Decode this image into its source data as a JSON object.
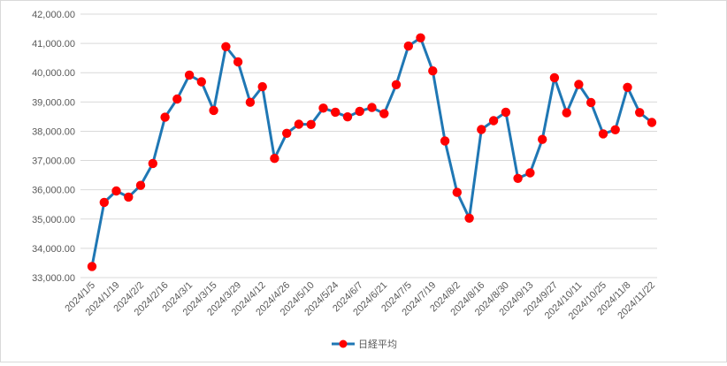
{
  "chart_data": {
    "type": "line",
    "title": "",
    "xlabel": "",
    "ylabel": "",
    "ylim": [
      33000,
      42000
    ],
    "y_ticks": [
      33000,
      34000,
      35000,
      36000,
      37000,
      38000,
      39000,
      40000,
      41000,
      42000
    ],
    "y_tick_labels": [
      "33,000.00",
      "34,000.00",
      "35,000.00",
      "36,000.00",
      "37,000.00",
      "38,000.00",
      "39,000.00",
      "40,000.00",
      "41,000.00",
      "42,000.00"
    ],
    "grid": true,
    "legend_position": "bottom",
    "x": [
      "2024/1/5",
      "2024/1/12",
      "2024/1/19",
      "2024/1/26",
      "2024/2/2",
      "2024/2/9",
      "2024/2/16",
      "2024/2/23",
      "2024/3/1",
      "2024/3/8",
      "2024/3/15",
      "2024/3/22",
      "2024/3/29",
      "2024/4/5",
      "2024/4/12",
      "2024/4/19",
      "2024/4/26",
      "2024/5/3",
      "2024/5/10",
      "2024/5/17",
      "2024/5/24",
      "2024/5/31",
      "2024/6/7",
      "2024/6/14",
      "2024/6/21",
      "2024/6/28",
      "2024/7/5",
      "2024/7/12",
      "2024/7/19",
      "2024/7/26",
      "2024/8/2",
      "2024/8/9",
      "2024/8/16",
      "2024/8/23",
      "2024/8/30",
      "2024/9/6",
      "2024/9/13",
      "2024/9/20",
      "2024/9/27",
      "2024/10/4",
      "2024/10/11",
      "2024/10/18",
      "2024/10/25",
      "2024/11/1",
      "2024/11/8",
      "2024/11/15",
      "2024/11/22"
    ],
    "x_tick_labels": [
      "2024/1/5",
      "2024/1/19",
      "2024/2/2",
      "2024/2/16",
      "2024/3/1",
      "2024/3/15",
      "2024/3/29",
      "2024/4/12",
      "2024/4/26",
      "2024/5/10",
      "2024/5/24",
      "2024/6/7",
      "2024/6/21",
      "2024/7/5",
      "2024/7/19",
      "2024/8/2",
      "2024/8/16",
      "2024/8/30",
      "2024/9/13",
      "2024/9/27",
      "2024/10/11",
      "2024/10/25",
      "2024/11/8",
      "2024/11/22"
    ],
    "series": [
      {
        "name": "日経平均",
        "color": "#1f77b4",
        "marker_color": "#ff0000",
        "values": [
          33380,
          35570,
          35960,
          35750,
          36150,
          36900,
          38480,
          39100,
          39920,
          39690,
          38710,
          40890,
          40370,
          38990,
          39520,
          37070,
          37930,
          38240,
          38230,
          38790,
          38650,
          38490,
          38680,
          38810,
          38600,
          39590,
          40910,
          41190,
          40060,
          37670,
          35910,
          35030,
          38060,
          38360,
          38650,
          36390,
          36580,
          37720,
          39830,
          38630,
          39600,
          38980,
          37910,
          38050,
          39500,
          38640,
          38300
        ]
      }
    ]
  }
}
